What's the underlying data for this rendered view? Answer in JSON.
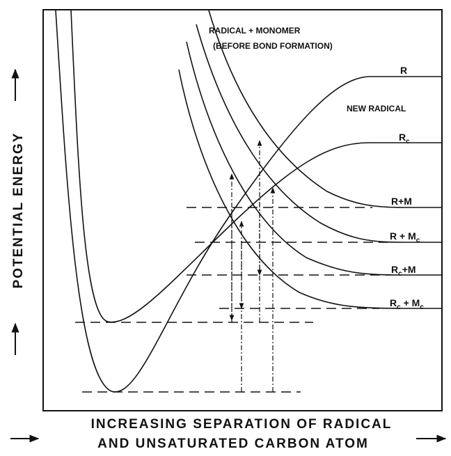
{
  "diagram": {
    "y_axis_label": "POTENTIAL ENERGY",
    "x_axis_label_lines": [
      "INCREASING SEPARATION OF RADICAL",
      "AND UNSATURATED CARBON ATOM"
    ],
    "annotation_lines": [
      "RADICAL + MONOMER",
      "(BEFORE BOND FORMATION)"
    ],
    "region_label": "NEW RADICAL",
    "curve_labels": [
      [
        "R"
      ],
      [
        "R",
        "c"
      ],
      [
        "R+M"
      ],
      [
        "R + M",
        "c"
      ],
      [
        "R",
        "c",
        "+M"
      ],
      [
        "R",
        "c",
        " + M",
        "c"
      ]
    ]
  }
}
